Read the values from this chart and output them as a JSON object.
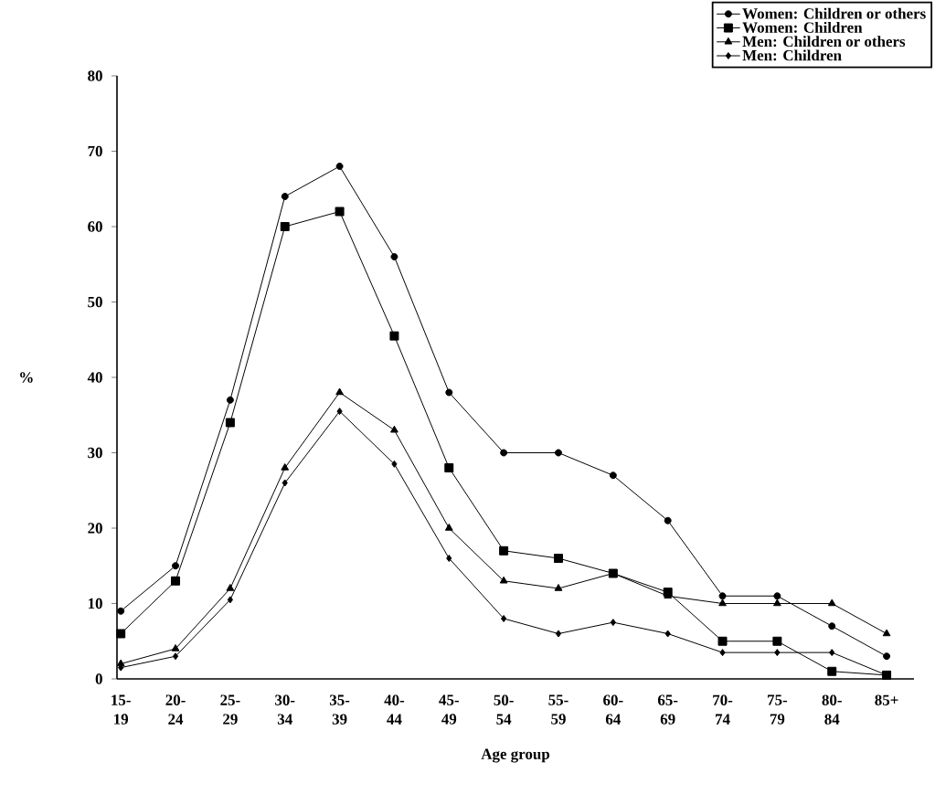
{
  "chart_data": {
    "type": "line",
    "xlabel": "Age group",
    "ylabel": "%",
    "categories": [
      "15-19",
      "20-24",
      "25-29",
      "30-34",
      "35-39",
      "40-44",
      "45-49",
      "50-54",
      "55-59",
      "60-64",
      "65-69",
      "70-74",
      "75-79",
      "80-84",
      "85+"
    ],
    "series": [
      {
        "name": "Women: Children or others",
        "color": "#000000",
        "marker": "circle",
        "values": [
          9,
          15,
          37,
          64,
          68,
          56,
          38,
          30,
          30,
          27,
          21,
          11,
          11,
          7,
          3
        ]
      },
      {
        "name": "Women: Children",
        "color": "#000000",
        "marker": "square",
        "values": [
          6,
          13,
          34,
          60,
          62,
          45.5,
          28,
          17,
          16,
          14,
          11.5,
          5,
          5,
          1,
          0.5
        ]
      },
      {
        "name": "Men: Children or others",
        "color": "#000000",
        "marker": "triangle",
        "values": [
          2,
          4,
          12,
          28,
          38,
          33,
          20,
          13,
          12,
          14,
          11,
          10,
          10,
          10,
          6
        ]
      },
      {
        "name": "Men: Children",
        "color": "#000000",
        "marker": "diamond",
        "values": [
          1.5,
          3,
          10.5,
          26,
          35.5,
          28.5,
          16,
          8,
          6,
          7.5,
          6,
          3.5,
          3.5,
          3.5,
          0.5
        ]
      }
    ],
    "ylim": [
      0,
      80
    ],
    "yticks": [
      0,
      10,
      20,
      30,
      40,
      50,
      60,
      70,
      80
    ],
    "grid": false,
    "legend": "top right",
    "line_style": "solid"
  }
}
